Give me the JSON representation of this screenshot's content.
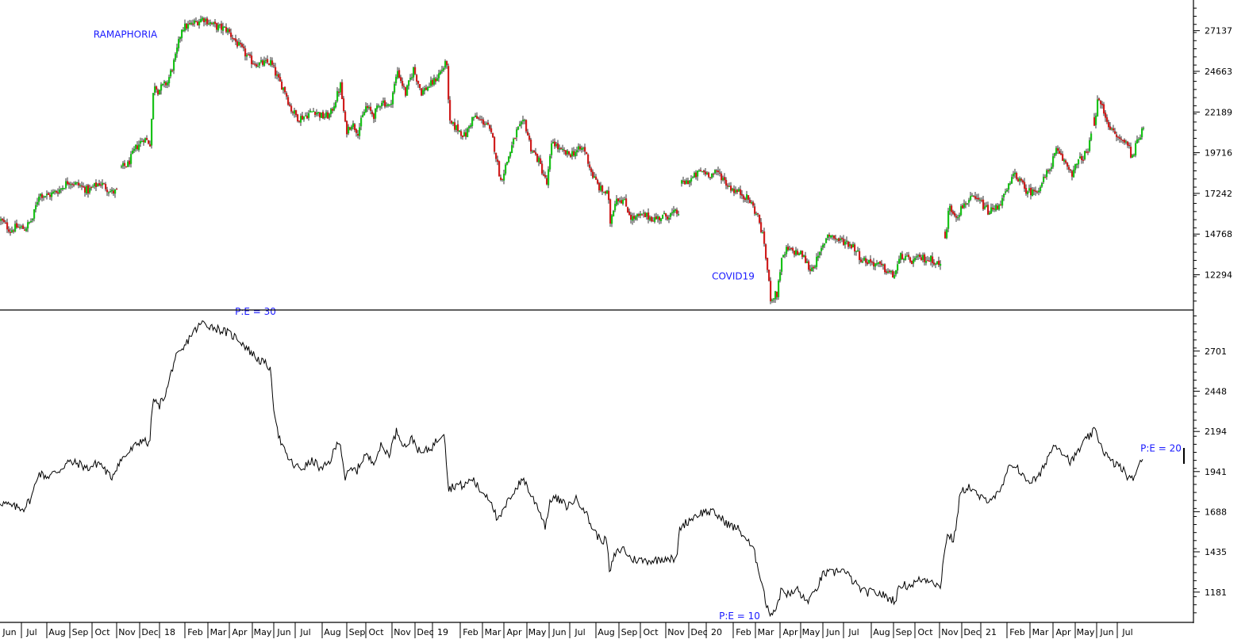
{
  "chart_data": [
    {
      "type": "candlestick",
      "title": "",
      "y_ticks": [
        27137,
        24663,
        22189,
        19716,
        17242,
        14768,
        12294
      ],
      "ylim": [
        10200,
        29000
      ],
      "x_range": [
        0,
        1440
      ],
      "colors": {
        "up": "#19c219",
        "down": "#d01e1e"
      },
      "annotations": [
        {
          "text": "RAMAPHORIA",
          "x": 158,
          "y": 26700,
          "color": "#1a1aff"
        },
        {
          "text": "COVID19",
          "x": 924,
          "y": 12000,
          "color": "#1a1aff"
        }
      ],
      "anchors": [
        [
          0,
          15600
        ],
        [
          12,
          15000
        ],
        [
          20,
          15200
        ],
        [
          30,
          15100
        ],
        [
          40,
          15700
        ],
        [
          48,
          17200
        ],
        [
          60,
          17100
        ],
        [
          75,
          17500
        ],
        [
          85,
          18000
        ],
        [
          100,
          17700
        ],
        [
          110,
          17400
        ],
        [
          125,
          17900
        ],
        [
          140,
          17300
        ],
        [
          148,
          17400
        ],
        [
          152,
          18800
        ],
        [
          160,
          19000
        ],
        [
          170,
          20000
        ],
        [
          180,
          20600
        ],
        [
          188,
          20300
        ],
        [
          193,
          24000
        ],
        [
          198,
          23500
        ],
        [
          210,
          24000
        ],
        [
          220,
          25500
        ],
        [
          228,
          27300
        ],
        [
          240,
          27500
        ],
        [
          255,
          27900
        ],
        [
          270,
          27400
        ],
        [
          285,
          27200
        ],
        [
          300,
          26200
        ],
        [
          315,
          25300
        ],
        [
          325,
          25100
        ],
        [
          340,
          25200
        ],
        [
          350,
          24100
        ],
        [
          358,
          23500
        ],
        [
          365,
          22400
        ],
        [
          375,
          21800
        ],
        [
          385,
          22000
        ],
        [
          395,
          22300
        ],
        [
          405,
          21900
        ],
        [
          415,
          22000
        ],
        [
          428,
          23800
        ],
        [
          435,
          21000
        ],
        [
          442,
          21500
        ],
        [
          450,
          21000
        ],
        [
          460,
          22500
        ],
        [
          470,
          22000
        ],
        [
          480,
          22900
        ],
        [
          490,
          22500
        ],
        [
          500,
          24700
        ],
        [
          510,
          23300
        ],
        [
          520,
          24800
        ],
        [
          530,
          23400
        ],
        [
          545,
          24000
        ],
        [
          562,
          25200
        ],
        [
          565,
          21500
        ],
        [
          575,
          21200
        ],
        [
          585,
          20700
        ],
        [
          595,
          21900
        ],
        [
          603,
          21700
        ],
        [
          612,
          21500
        ],
        [
          620,
          20500
        ],
        [
          630,
          18000
        ],
        [
          640,
          19500
        ],
        [
          650,
          21000
        ],
        [
          660,
          21600
        ],
        [
          668,
          20000
        ],
        [
          678,
          19200
        ],
        [
          688,
          17800
        ],
        [
          695,
          20500
        ],
        [
          705,
          19800
        ],
        [
          715,
          19600
        ],
        [
          725,
          19800
        ],
        [
          735,
          20000
        ],
        [
          745,
          18400
        ],
        [
          755,
          17500
        ],
        [
          765,
          17200
        ],
        [
          768,
          15500
        ],
        [
          775,
          17000
        ],
        [
          785,
          16800
        ],
        [
          795,
          15700
        ],
        [
          810,
          15900
        ],
        [
          825,
          15700
        ],
        [
          840,
          15900
        ],
        [
          855,
          16100
        ],
        [
          858,
          17800
        ],
        [
          870,
          18100
        ],
        [
          882,
          18600
        ],
        [
          895,
          18400
        ],
        [
          905,
          18500
        ],
        [
          915,
          17800
        ],
        [
          925,
          17400
        ],
        [
          935,
          17200
        ],
        [
          945,
          16700
        ],
        [
          955,
          15700
        ],
        [
          962,
          14200
        ],
        [
          970,
          10900
        ],
        [
          978,
          11100
        ],
        [
          983,
          13000
        ],
        [
          990,
          13800
        ],
        [
          1000,
          13700
        ],
        [
          1010,
          13500
        ],
        [
          1020,
          12600
        ],
        [
          1030,
          13300
        ],
        [
          1042,
          14800
        ],
        [
          1055,
          14400
        ],
        [
          1065,
          14300
        ],
        [
          1075,
          14000
        ],
        [
          1085,
          13200
        ],
        [
          1095,
          13100
        ],
        [
          1105,
          12900
        ],
        [
          1115,
          12600
        ],
        [
          1125,
          12200
        ],
        [
          1135,
          13500
        ],
        [
          1145,
          13100
        ],
        [
          1160,
          13300
        ],
        [
          1175,
          13200
        ],
        [
          1185,
          12800
        ],
        [
          1190,
          14500
        ],
        [
          1195,
          16400
        ],
        [
          1205,
          15900
        ],
        [
          1215,
          16700
        ],
        [
          1225,
          16900
        ],
        [
          1235,
          16700
        ],
        [
          1245,
          16100
        ],
        [
          1255,
          16400
        ],
        [
          1265,
          17100
        ],
        [
          1278,
          18500
        ],
        [
          1290,
          17500
        ],
        [
          1300,
          17300
        ],
        [
          1310,
          17700
        ],
        [
          1320,
          18600
        ],
        [
          1330,
          19800
        ],
        [
          1340,
          19200
        ],
        [
          1350,
          18500
        ],
        [
          1360,
          19300
        ],
        [
          1370,
          19800
        ],
        [
          1378,
          21600
        ],
        [
          1383,
          23000
        ],
        [
          1390,
          22200
        ],
        [
          1400,
          21000
        ],
        [
          1410,
          20500
        ],
        [
          1420,
          20300
        ],
        [
          1425,
          19500
        ],
        [
          1432,
          20300
        ],
        [
          1440,
          21400
        ]
      ]
    },
    {
      "type": "line",
      "title": "",
      "y_ticks": [
        2701,
        2448,
        2194,
        1941,
        1688,
        1435,
        1181
      ],
      "ylim": [
        1000,
        2955
      ],
      "x_range": [
        0,
        1440
      ],
      "color": "#000000",
      "annotations": [
        {
          "text": "P:E = 30",
          "x": 322,
          "y": 2930,
          "color": "#1a1aff"
        },
        {
          "text": "P:E = 10",
          "x": 932,
          "y": 1010,
          "color": "#1a1aff"
        },
        {
          "text": "P:E = 20",
          "x": 1463,
          "y": 2067,
          "color": "#1a1aff"
        }
      ],
      "anchors": [
        [
          0,
          1750
        ],
        [
          15,
          1720
        ],
        [
          30,
          1710
        ],
        [
          40,
          1780
        ],
        [
          48,
          1930
        ],
        [
          60,
          1910
        ],
        [
          75,
          1950
        ],
        [
          85,
          2000
        ],
        [
          100,
          1990
        ],
        [
          110,
          1960
        ],
        [
          125,
          2000
        ],
        [
          140,
          1900
        ],
        [
          150,
          2000
        ],
        [
          160,
          2050
        ],
        [
          170,
          2100
        ],
        [
          180,
          2150
        ],
        [
          188,
          2100
        ],
        [
          193,
          2400
        ],
        [
          200,
          2350
        ],
        [
          210,
          2450
        ],
        [
          220,
          2650
        ],
        [
          230,
          2700
        ],
        [
          240,
          2800
        ],
        [
          255,
          2880
        ],
        [
          270,
          2850
        ],
        [
          285,
          2820
        ],
        [
          300,
          2780
        ],
        [
          315,
          2700
        ],
        [
          325,
          2650
        ],
        [
          340,
          2600
        ],
        [
          345,
          2350
        ],
        [
          352,
          2150
        ],
        [
          360,
          2050
        ],
        [
          370,
          1980
        ],
        [
          380,
          1960
        ],
        [
          395,
          2010
        ],
        [
          405,
          1950
        ],
        [
          415,
          2000
        ],
        [
          428,
          2150
        ],
        [
          435,
          1900
        ],
        [
          442,
          1950
        ],
        [
          450,
          1950
        ],
        [
          460,
          2050
        ],
        [
          470,
          2000
        ],
        [
          480,
          2100
        ],
        [
          490,
          2050
        ],
        [
          500,
          2200
        ],
        [
          510,
          2100
        ],
        [
          520,
          2150
        ],
        [
          530,
          2050
        ],
        [
          545,
          2100
        ],
        [
          560,
          2200
        ],
        [
          565,
          1830
        ],
        [
          575,
          1860
        ],
        [
          585,
          1850
        ],
        [
          595,
          1900
        ],
        [
          605,
          1820
        ],
        [
          612,
          1800
        ],
        [
          620,
          1750
        ],
        [
          627,
          1620
        ],
        [
          635,
          1700
        ],
        [
          645,
          1800
        ],
        [
          660,
          1900
        ],
        [
          668,
          1800
        ],
        [
          678,
          1720
        ],
        [
          687,
          1600
        ],
        [
          695,
          1780
        ],
        [
          705,
          1760
        ],
        [
          715,
          1720
        ],
        [
          725,
          1770
        ],
        [
          735,
          1720
        ],
        [
          745,
          1600
        ],
        [
          755,
          1520
        ],
        [
          765,
          1500
        ],
        [
          768,
          1300
        ],
        [
          775,
          1420
        ],
        [
          785,
          1460
        ],
        [
          795,
          1390
        ],
        [
          810,
          1380
        ],
        [
          825,
          1380
        ],
        [
          840,
          1400
        ],
        [
          852,
          1380
        ],
        [
          857,
          1590
        ],
        [
          865,
          1620
        ],
        [
          875,
          1660
        ],
        [
          888,
          1690
        ],
        [
          900,
          1680
        ],
        [
          910,
          1640
        ],
        [
          920,
          1600
        ],
        [
          930,
          1580
        ],
        [
          940,
          1520
        ],
        [
          950,
          1440
        ],
        [
          960,
          1250
        ],
        [
          967,
          1070
        ],
        [
          972,
          1050
        ],
        [
          978,
          1080
        ],
        [
          985,
          1200
        ],
        [
          995,
          1160
        ],
        [
          1005,
          1200
        ],
        [
          1015,
          1120
        ],
        [
          1025,
          1160
        ],
        [
          1038,
          1300
        ],
        [
          1050,
          1300
        ],
        [
          1060,
          1330
        ],
        [
          1070,
          1280
        ],
        [
          1080,
          1220
        ],
        [
          1090,
          1180
        ],
        [
          1100,
          1180
        ],
        [
          1110,
          1170
        ],
        [
          1120,
          1140
        ],
        [
          1128,
          1130
        ],
        [
          1135,
          1230
        ],
        [
          1145,
          1220
        ],
        [
          1160,
          1260
        ],
        [
          1175,
          1260
        ],
        [
          1185,
          1200
        ],
        [
          1190,
          1450
        ],
        [
          1195,
          1550
        ],
        [
          1202,
          1500
        ],
        [
          1210,
          1800
        ],
        [
          1220,
          1850
        ],
        [
          1230,
          1800
        ],
        [
          1240,
          1760
        ],
        [
          1250,
          1780
        ],
        [
          1260,
          1800
        ],
        [
          1270,
          1950
        ],
        [
          1280,
          1990
        ],
        [
          1290,
          1900
        ],
        [
          1300,
          1880
        ],
        [
          1310,
          1910
        ],
        [
          1320,
          2030
        ],
        [
          1330,
          2120
        ],
        [
          1340,
          2060
        ],
        [
          1350,
          2000
        ],
        [
          1360,
          2080
        ],
        [
          1370,
          2150
        ],
        [
          1380,
          2200
        ],
        [
          1390,
          2080
        ],
        [
          1400,
          2000
        ],
        [
          1410,
          1980
        ],
        [
          1420,
          1920
        ],
        [
          1425,
          1880
        ],
        [
          1432,
          1940
        ],
        [
          1440,
          2020
        ]
      ]
    }
  ],
  "x_axis": {
    "months": [
      {
        "label": "Jun",
        "x": 12
      },
      {
        "label": "Jul",
        "x": 40
      },
      {
        "label": "Aug",
        "x": 72
      },
      {
        "label": "Sep",
        "x": 101
      },
      {
        "label": "Oct",
        "x": 129
      },
      {
        "label": "Nov",
        "x": 160
      },
      {
        "label": "Dec",
        "x": 189
      },
      {
        "label": "18",
        "x": 214
      },
      {
        "label": "Feb",
        "x": 246
      },
      {
        "label": "Mar",
        "x": 275
      },
      {
        "label": "Apr",
        "x": 302
      },
      {
        "label": "May",
        "x": 331
      },
      {
        "label": "Jun",
        "x": 358
      },
      {
        "label": "Jul",
        "x": 385
      },
      {
        "label": "Aug",
        "x": 419
      },
      {
        "label": "Sep",
        "x": 450
      },
      {
        "label": "Oct",
        "x": 474
      },
      {
        "label": "Nov",
        "x": 507
      },
      {
        "label": "Dec",
        "x": 536
      },
      {
        "label": "19",
        "x": 558
      },
      {
        "label": "Feb",
        "x": 593
      },
      {
        "label": "Mar",
        "x": 621
      },
      {
        "label": "Apr",
        "x": 648
      },
      {
        "label": "May",
        "x": 677
      },
      {
        "label": "Jun",
        "x": 705
      },
      {
        "label": "Jul",
        "x": 731
      },
      {
        "label": "Aug",
        "x": 764
      },
      {
        "label": "Sep",
        "x": 793
      },
      {
        "label": "Oct",
        "x": 820
      },
      {
        "label": "Nov",
        "x": 852
      },
      {
        "label": "Dec",
        "x": 881
      },
      {
        "label": "20",
        "x": 903
      },
      {
        "label": "Feb",
        "x": 937
      },
      {
        "label": "Mar",
        "x": 965
      },
      {
        "label": "Apr",
        "x": 996
      },
      {
        "label": "May",
        "x": 1022
      },
      {
        "label": "Jun",
        "x": 1050
      },
      {
        "label": "Jul",
        "x": 1076
      },
      {
        "label": "Aug",
        "x": 1111
      },
      {
        "label": "Sep",
        "x": 1139
      },
      {
        "label": "Oct",
        "x": 1166
      },
      {
        "label": "Nov",
        "x": 1197
      },
      {
        "label": "Dec",
        "x": 1225
      },
      {
        "label": "21",
        "x": 1249
      },
      {
        "label": "Feb",
        "x": 1282
      },
      {
        "label": "Mar",
        "x": 1311
      },
      {
        "label": "Apr",
        "x": 1340
      },
      {
        "label": "May",
        "x": 1368
      },
      {
        "label": "Jun",
        "x": 1395
      },
      {
        "label": "Jul",
        "x": 1421
      }
    ]
  }
}
